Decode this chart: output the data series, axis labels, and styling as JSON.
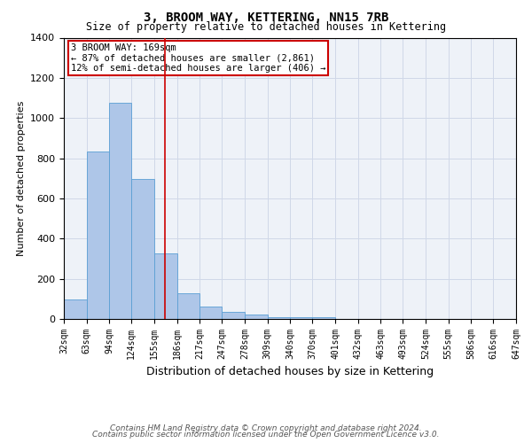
{
  "title": "3, BROOM WAY, KETTERING, NN15 7RB",
  "subtitle": "Size of property relative to detached houses in Kettering",
  "xlabel": "Distribution of detached houses by size in Kettering",
  "ylabel": "Number of detached properties",
  "footer_line1": "Contains HM Land Registry data © Crown copyright and database right 2024.",
  "footer_line2": "Contains public sector information licensed under the Open Government Licence v3.0.",
  "bin_labels": [
    "32sqm",
    "63sqm",
    "94sqm",
    "124sqm",
    "155sqm",
    "186sqm",
    "217sqm",
    "247sqm",
    "278sqm",
    "309sqm",
    "340sqm",
    "370sqm",
    "401sqm",
    "432sqm",
    "463sqm",
    "493sqm",
    "524sqm",
    "555sqm",
    "586sqm",
    "616sqm",
    "647sqm"
  ],
  "bin_edges": [
    32,
    63,
    94,
    124,
    155,
    186,
    217,
    247,
    278,
    309,
    340,
    370,
    401,
    432,
    463,
    493,
    524,
    555,
    586,
    616,
    647
  ],
  "bar_heights": [
    95,
    835,
    1075,
    695,
    325,
    130,
    60,
    35,
    20,
    10,
    10,
    10,
    0,
    0,
    0,
    0,
    0,
    0,
    0,
    0
  ],
  "bar_color": "#aec6e8",
  "bar_edge_color": "#5a9fd4",
  "grid_color": "#d0d8e8",
  "red_line_x": 169,
  "annotation_text_line1": "3 BROOM WAY: 169sqm",
  "annotation_text_line2": "← 87% of detached houses are smaller (2,861)",
  "annotation_text_line3": "12% of semi-detached houses are larger (406) →",
  "annotation_box_color": "#ffffff",
  "annotation_box_edge": "#cc0000",
  "ylim": [
    0,
    1400
  ],
  "yticks": [
    0,
    200,
    400,
    600,
    800,
    1000,
    1200,
    1400
  ],
  "background_color": "#ffffff",
  "plot_bg_color": "#eef2f8",
  "title_fontsize": 10,
  "subtitle_fontsize": 8.5,
  "ylabel_fontsize": 8,
  "xlabel_fontsize": 9,
  "ytick_fontsize": 8,
  "xtick_fontsize": 7,
  "footer_fontsize": 6.5
}
